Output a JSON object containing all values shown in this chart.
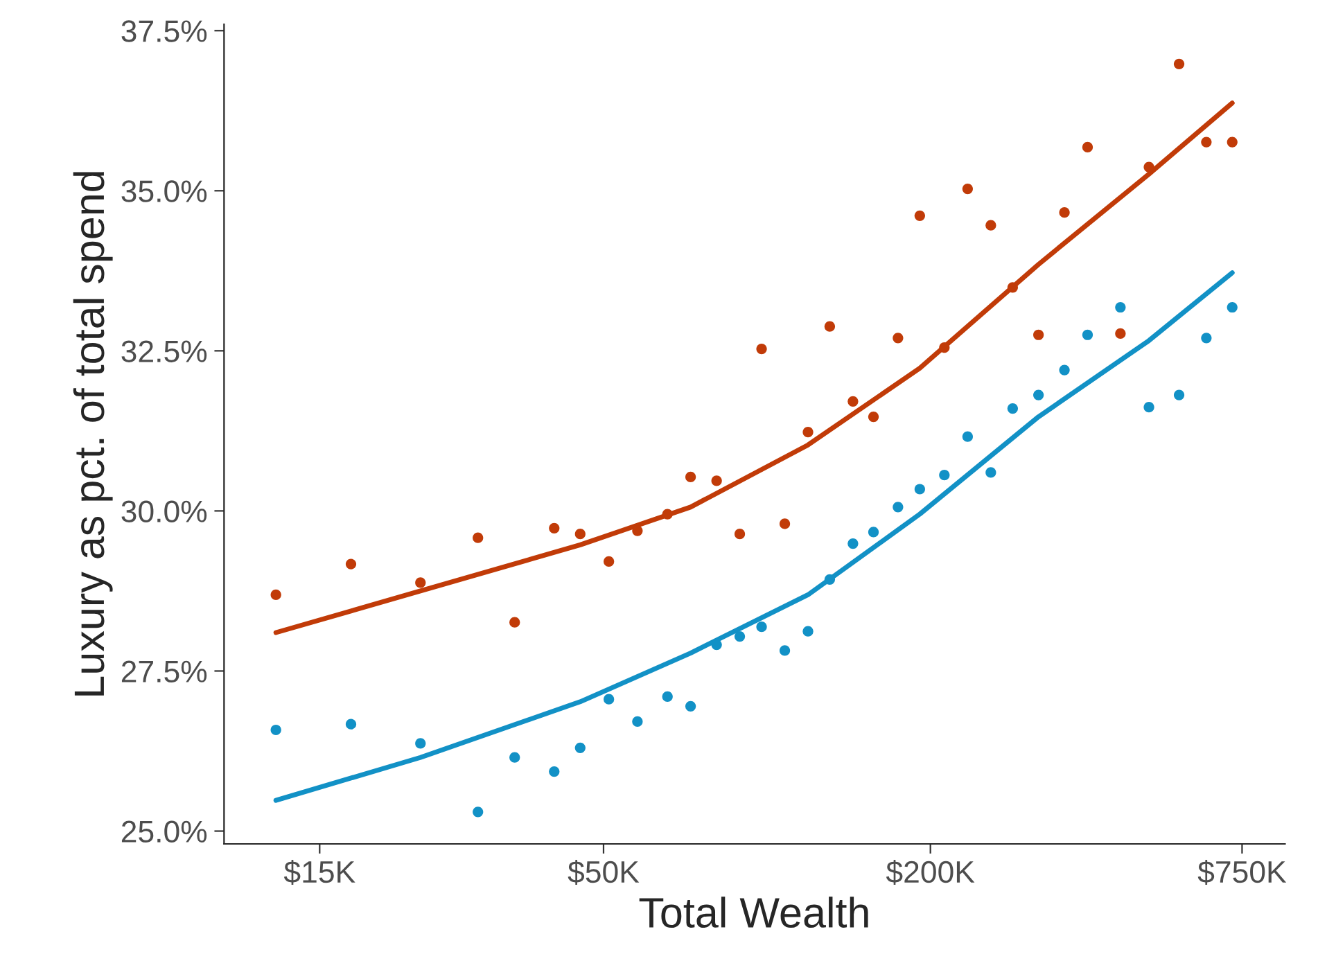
{
  "chart_data": {
    "type": "scatter",
    "xlabel": "Total Wealth",
    "ylabel": "Luxury as pct. of total spend",
    "log": "x",
    "grid": false,
    "legend": false,
    "marker": "circle",
    "xlim": [
      10000,
      900000
    ],
    "xticks": [
      {
        "value": 15000,
        "label": "$15K"
      },
      {
        "value": 50000,
        "label": "$50K"
      },
      {
        "value": 200000,
        "label": "$200K"
      },
      {
        "value": 750000,
        "label": "$750K"
      }
    ],
    "ylim": [
      24.8,
      37.6
    ],
    "yticks": [
      {
        "value": 25,
        "label": "25.0%"
      },
      {
        "value": 27.5,
        "label": "27.5%"
      },
      {
        "value": 30,
        "label": "30.0%"
      },
      {
        "value": 32.5,
        "label": "32.5%"
      },
      {
        "value": 35,
        "label": "35.0%"
      },
      {
        "value": 37.5,
        "label": "37.5%"
      }
    ],
    "series": [
      {
        "color": "#c13b08",
        "x": [
          12460,
          17130,
          23000,
          29350,
          34300,
          40560,
          45290,
          51140,
          57730,
          65570,
          72330,
          80770,
          89100,
          97740,
          107850,
          119000,
          130500,
          144000,
          157100,
          174300,
          191200,
          212200,
          234200,
          258400,
          283500,
          316300,
          353100,
          389500,
          447700,
          505300,
          574200,
          644600,
          719400
        ],
        "values": [
          28.69,
          29.17,
          28.88,
          29.58,
          28.26,
          29.73,
          29.64,
          29.21,
          29.69,
          29.95,
          30.53,
          30.47,
          29.64,
          32.53,
          29.8,
          31.23,
          32.88,
          31.71,
          31.47,
          32.7,
          34.61,
          32.55,
          35.03,
          34.46,
          33.49,
          32.75,
          34.66,
          35.68,
          32.77,
          35.37,
          36.98,
          35.76,
          35.76
        ]
      },
      {
        "color": "#1291c6",
        "x": [
          12460,
          17130,
          23000,
          29350,
          34300,
          40560,
          45290,
          51140,
          57730,
          65570,
          72330,
          80770,
          89100,
          97740,
          107850,
          119000,
          130500,
          144000,
          157100,
          174300,
          191200,
          212200,
          234200,
          258400,
          283500,
          316300,
          353100,
          389500,
          447700,
          505300,
          574200,
          644600,
          719400
        ],
        "values": [
          26.58,
          26.67,
          26.37,
          25.3,
          26.15,
          25.93,
          26.3,
          27.06,
          26.71,
          27.1,
          26.95,
          27.91,
          28.04,
          28.19,
          27.82,
          28.12,
          28.93,
          29.49,
          29.67,
          30.06,
          30.34,
          30.56,
          31.16,
          30.6,
          31.6,
          31.81,
          32.2,
          32.75,
          33.18,
          31.62,
          31.81,
          32.7,
          33.18
        ]
      },
      {
        "type": "line",
        "color": "#c13b08",
        "marker": "none",
        "x": [
          12460,
          23000,
          45290,
          72330,
          119000,
          191200,
          316300,
          505300,
          719400
        ],
        "values": [
          28.1,
          28.75,
          29.47,
          30.06,
          31.03,
          32.23,
          33.85,
          35.26,
          36.37
        ]
      },
      {
        "type": "line",
        "color": "#1291c6",
        "marker": "none",
        "x": [
          12460,
          23000,
          45290,
          72330,
          119000,
          191200,
          316300,
          505300,
          719400
        ],
        "values": [
          25.48,
          26.15,
          27.02,
          27.78,
          28.69,
          29.95,
          31.47,
          32.66,
          33.72
        ]
      }
    ]
  }
}
